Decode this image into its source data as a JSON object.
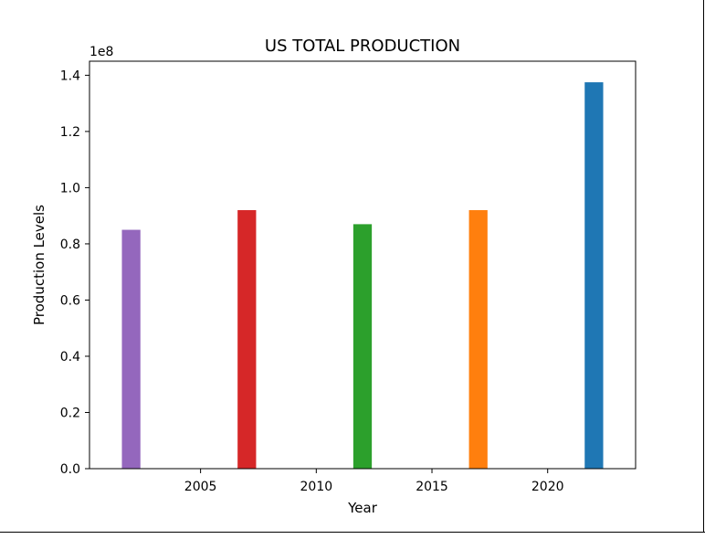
{
  "chart_data": {
    "type": "bar",
    "title": "US TOTAL PRODUCTION",
    "xlabel": "Year",
    "ylabel": "Production Levels",
    "y_offset_label": "1e8",
    "categories": [
      2002,
      2007,
      2012,
      2017,
      2022
    ],
    "values": [
      85000000,
      92000000,
      87000000,
      92000000,
      137500000
    ],
    "bar_colors": [
      "#9467bd",
      "#d62728",
      "#2ca02c",
      "#ff7f0e",
      "#1f77b4"
    ],
    "xlim": [
      2000.2,
      2023.8
    ],
    "ylim": [
      0,
      145000000
    ],
    "xticks": [
      2005,
      2010,
      2015,
      2020
    ],
    "yticks": [
      0,
      20000000,
      40000000,
      60000000,
      80000000,
      100000000,
      120000000,
      140000000
    ],
    "ytick_labels": [
      "0.0",
      "0.2",
      "0.4",
      "0.6",
      "0.8",
      "1.0",
      "1.2",
      "1.4"
    ],
    "grid": false,
    "legend": "none"
  }
}
